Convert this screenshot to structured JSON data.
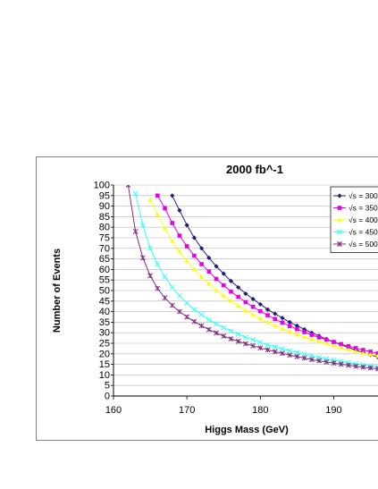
{
  "chart_data": {
    "type": "line",
    "title": "2000  fb^-1",
    "xlabel": "Higgs Mass (GeV)",
    "ylabel": "Number of Events",
    "xlim": [
      160,
      197
    ],
    "ylim": [
      0,
      100
    ],
    "x_ticks": [
      "160",
      "170",
      "180",
      "190"
    ],
    "y_ticks": [
      "0",
      "5",
      "10",
      "15",
      "20",
      "25",
      "30",
      "35",
      "40",
      "45",
      "50",
      "55",
      "60",
      "65",
      "70",
      "75",
      "80",
      "85",
      "90",
      "95",
      "100"
    ],
    "grid": true,
    "legend_position": "top-right",
    "series": [
      {
        "name": "√s = 300",
        "color": "#1f1f7a",
        "marker": "diamond",
        "x": [
          168,
          169,
          170,
          171,
          172,
          173,
          174,
          175,
          176,
          177,
          178,
          179,
          180,
          181,
          182,
          183,
          184,
          185,
          186,
          187,
          188,
          189,
          190,
          191,
          192,
          193,
          194,
          195,
          196,
          197
        ],
        "y": [
          95,
          88,
          81,
          75,
          70,
          65.5,
          61.5,
          58,
          54.5,
          51.5,
          48.5,
          46,
          43.5,
          41,
          39,
          37,
          35,
          33.3,
          31.6,
          30,
          28.5,
          27,
          25.6,
          24.3,
          23,
          21.8,
          20.6,
          19.5,
          18.5,
          17.5
        ]
      },
      {
        "name": "√s = 350",
        "color": "#e600e6",
        "marker": "square",
        "x": [
          166,
          167,
          168,
          169,
          170,
          171,
          172,
          173,
          174,
          175,
          176,
          177,
          178,
          179,
          180,
          181,
          182,
          183,
          184,
          185,
          186,
          187,
          188,
          189,
          190,
          191,
          192,
          193,
          194,
          195,
          196,
          197
        ],
        "y": [
          95,
          89,
          82,
          76,
          71,
          66.5,
          62.5,
          59,
          55.5,
          52.5,
          49.5,
          47,
          44.5,
          42.3,
          40.2,
          38.3,
          36.5,
          34.8,
          33.2,
          31.7,
          30.3,
          29,
          27.8,
          26.7,
          25.6,
          24.6,
          23.6,
          22.7,
          21.8,
          21,
          20.2,
          19.5
        ]
      },
      {
        "name": "√s = 400",
        "color": "#ffff00",
        "marker": "triangle",
        "x": [
          165,
          166,
          167,
          168,
          169,
          170,
          171,
          172,
          173,
          174,
          175,
          176,
          177,
          178,
          179,
          180,
          181,
          182,
          183,
          184,
          185,
          186,
          187,
          188,
          189,
          190,
          191,
          192,
          193,
          194,
          195,
          196,
          197
        ],
        "y": [
          93,
          86,
          79.5,
          73.5,
          68.5,
          64,
          60,
          56.5,
          53.2,
          50.2,
          47.5,
          45,
          42.7,
          40.5,
          38.5,
          36.7,
          35,
          33.4,
          31.9,
          30.5,
          29.2,
          28,
          26.9,
          25.8,
          24.8,
          23.8,
          22.9,
          22,
          21.2,
          20.4,
          19.7,
          19,
          18.3
        ]
      },
      {
        "name": "√s = 450",
        "color": "#33ffff",
        "marker": "x",
        "x": [
          163,
          164,
          165,
          166,
          167,
          168,
          169,
          170,
          171,
          172,
          173,
          174,
          175,
          176,
          177,
          178,
          179,
          180,
          181,
          182,
          183,
          184,
          185,
          186,
          187,
          188,
          189,
          190,
          191,
          192,
          193,
          194,
          195,
          196,
          197
        ],
        "y": [
          96,
          81,
          70,
          62.5,
          56.5,
          51.5,
          47.5,
          44,
          41,
          38.5,
          36.2,
          34.2,
          32.4,
          30.8,
          29.3,
          27.9,
          26.6,
          25.4,
          24.3,
          23.3,
          22.3,
          21.4,
          20.6,
          19.8,
          19,
          18.3,
          17.6,
          17,
          16.4,
          15.8,
          15.3,
          14.8,
          14.3,
          13.8,
          13.4
        ]
      },
      {
        "name": "√s = 500",
        "color": "#7f2f7f",
        "marker": "star",
        "x": [
          162,
          163,
          164,
          165,
          166,
          167,
          168,
          169,
          170,
          171,
          172,
          173,
          174,
          175,
          176,
          177,
          178,
          179,
          180,
          181,
          182,
          183,
          184,
          185,
          186,
          187,
          188,
          189,
          190,
          191,
          192,
          193,
          194,
          195,
          196,
          197
        ],
        "y": [
          100,
          78,
          65.5,
          57,
          51,
          46.5,
          43,
          40,
          37.5,
          35.3,
          33.3,
          31.5,
          29.9,
          28.4,
          27.1,
          25.9,
          24.8,
          23.8,
          22.8,
          21.9,
          21,
          20.2,
          19.4,
          18.7,
          18,
          17.3,
          16.7,
          16.1,
          15.6,
          15.1,
          14.6,
          14.1,
          13.7,
          13.3,
          12.9,
          12.5
        ]
      }
    ]
  }
}
